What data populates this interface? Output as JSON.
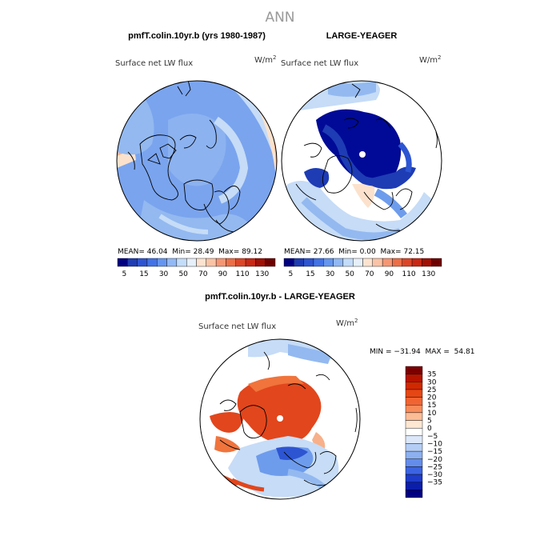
{
  "main_title": "ANN",
  "panels": [
    {
      "title": "pmfT.colin.10yr.b (yrs 1980-1987)",
      "field": "Surface net LW flux",
      "units": "W/m",
      "units_exp": "2",
      "stats": {
        "mean_label": "MEAN=",
        "mean": "46.04",
        "min_label": "Min=",
        "min": "28.49",
        "max_label": "Max=",
        "max": "89.12"
      }
    },
    {
      "title": "LARGE-YEAGER",
      "field": "Surface net LW flux",
      "units": "W/m",
      "units_exp": "2",
      "stats": {
        "mean_label": "MEAN=",
        "mean": "27.66",
        "min_label": "Min=",
        "min": "0.00",
        "max_label": "Max=",
        "max": "72.15"
      }
    }
  ],
  "abs_colorbar": {
    "colors": [
      "#000080",
      "#1e3cb4",
      "#2d55d2",
      "#4173e6",
      "#6496f0",
      "#91b9f5",
      "#c3dcfa",
      "#e6f0fa",
      "#fde3cf",
      "#fac3a5",
      "#f59673",
      "#eb6e46",
      "#dc4628",
      "#c82814",
      "#a01005",
      "#6e0000"
    ],
    "tick_labels": [
      "5",
      "15",
      "30",
      "50",
      "70",
      "90",
      "110",
      "130"
    ]
  },
  "difference": {
    "title": "pmfT.colin.10yr.b - LARGE-YEAGER",
    "field": "Surface net LW flux",
    "units": "W/m",
    "units_exp": "2",
    "range_text": "MIN = −31.94  MAX =  54.81",
    "colorbar": {
      "colors": [
        "#7a0000",
        "#b41400",
        "#d22800",
        "#e64614",
        "#f06432",
        "#f78c5a",
        "#fbbc96",
        "#fde6d2",
        "#ffffff",
        "#dce8fa",
        "#b4cdf5",
        "#8cb0f0",
        "#648cea",
        "#3c64e1",
        "#1e3cc8",
        "#0a1eaa",
        "#000082"
      ],
      "tick_labels": [
        "35",
        "30",
        "25",
        "20",
        "15",
        "10",
        "5",
        "0",
        "−5",
        "−10",
        "−15",
        "−20",
        "−25",
        "−30",
        "−35"
      ]
    }
  },
  "colors": {
    "ocean_light": "#c6dcf7",
    "ocean_mid": "#93b9f0",
    "ocean_blue": "#6e9cec",
    "deep_blue": "#1e3cb4",
    "navy": "#000a96",
    "warm_light": "#fce2cc",
    "warm_mid": "#f7b08a",
    "diff_red": "#e2461c",
    "diff_orange": "#f0743c",
    "coast": "#000000"
  }
}
